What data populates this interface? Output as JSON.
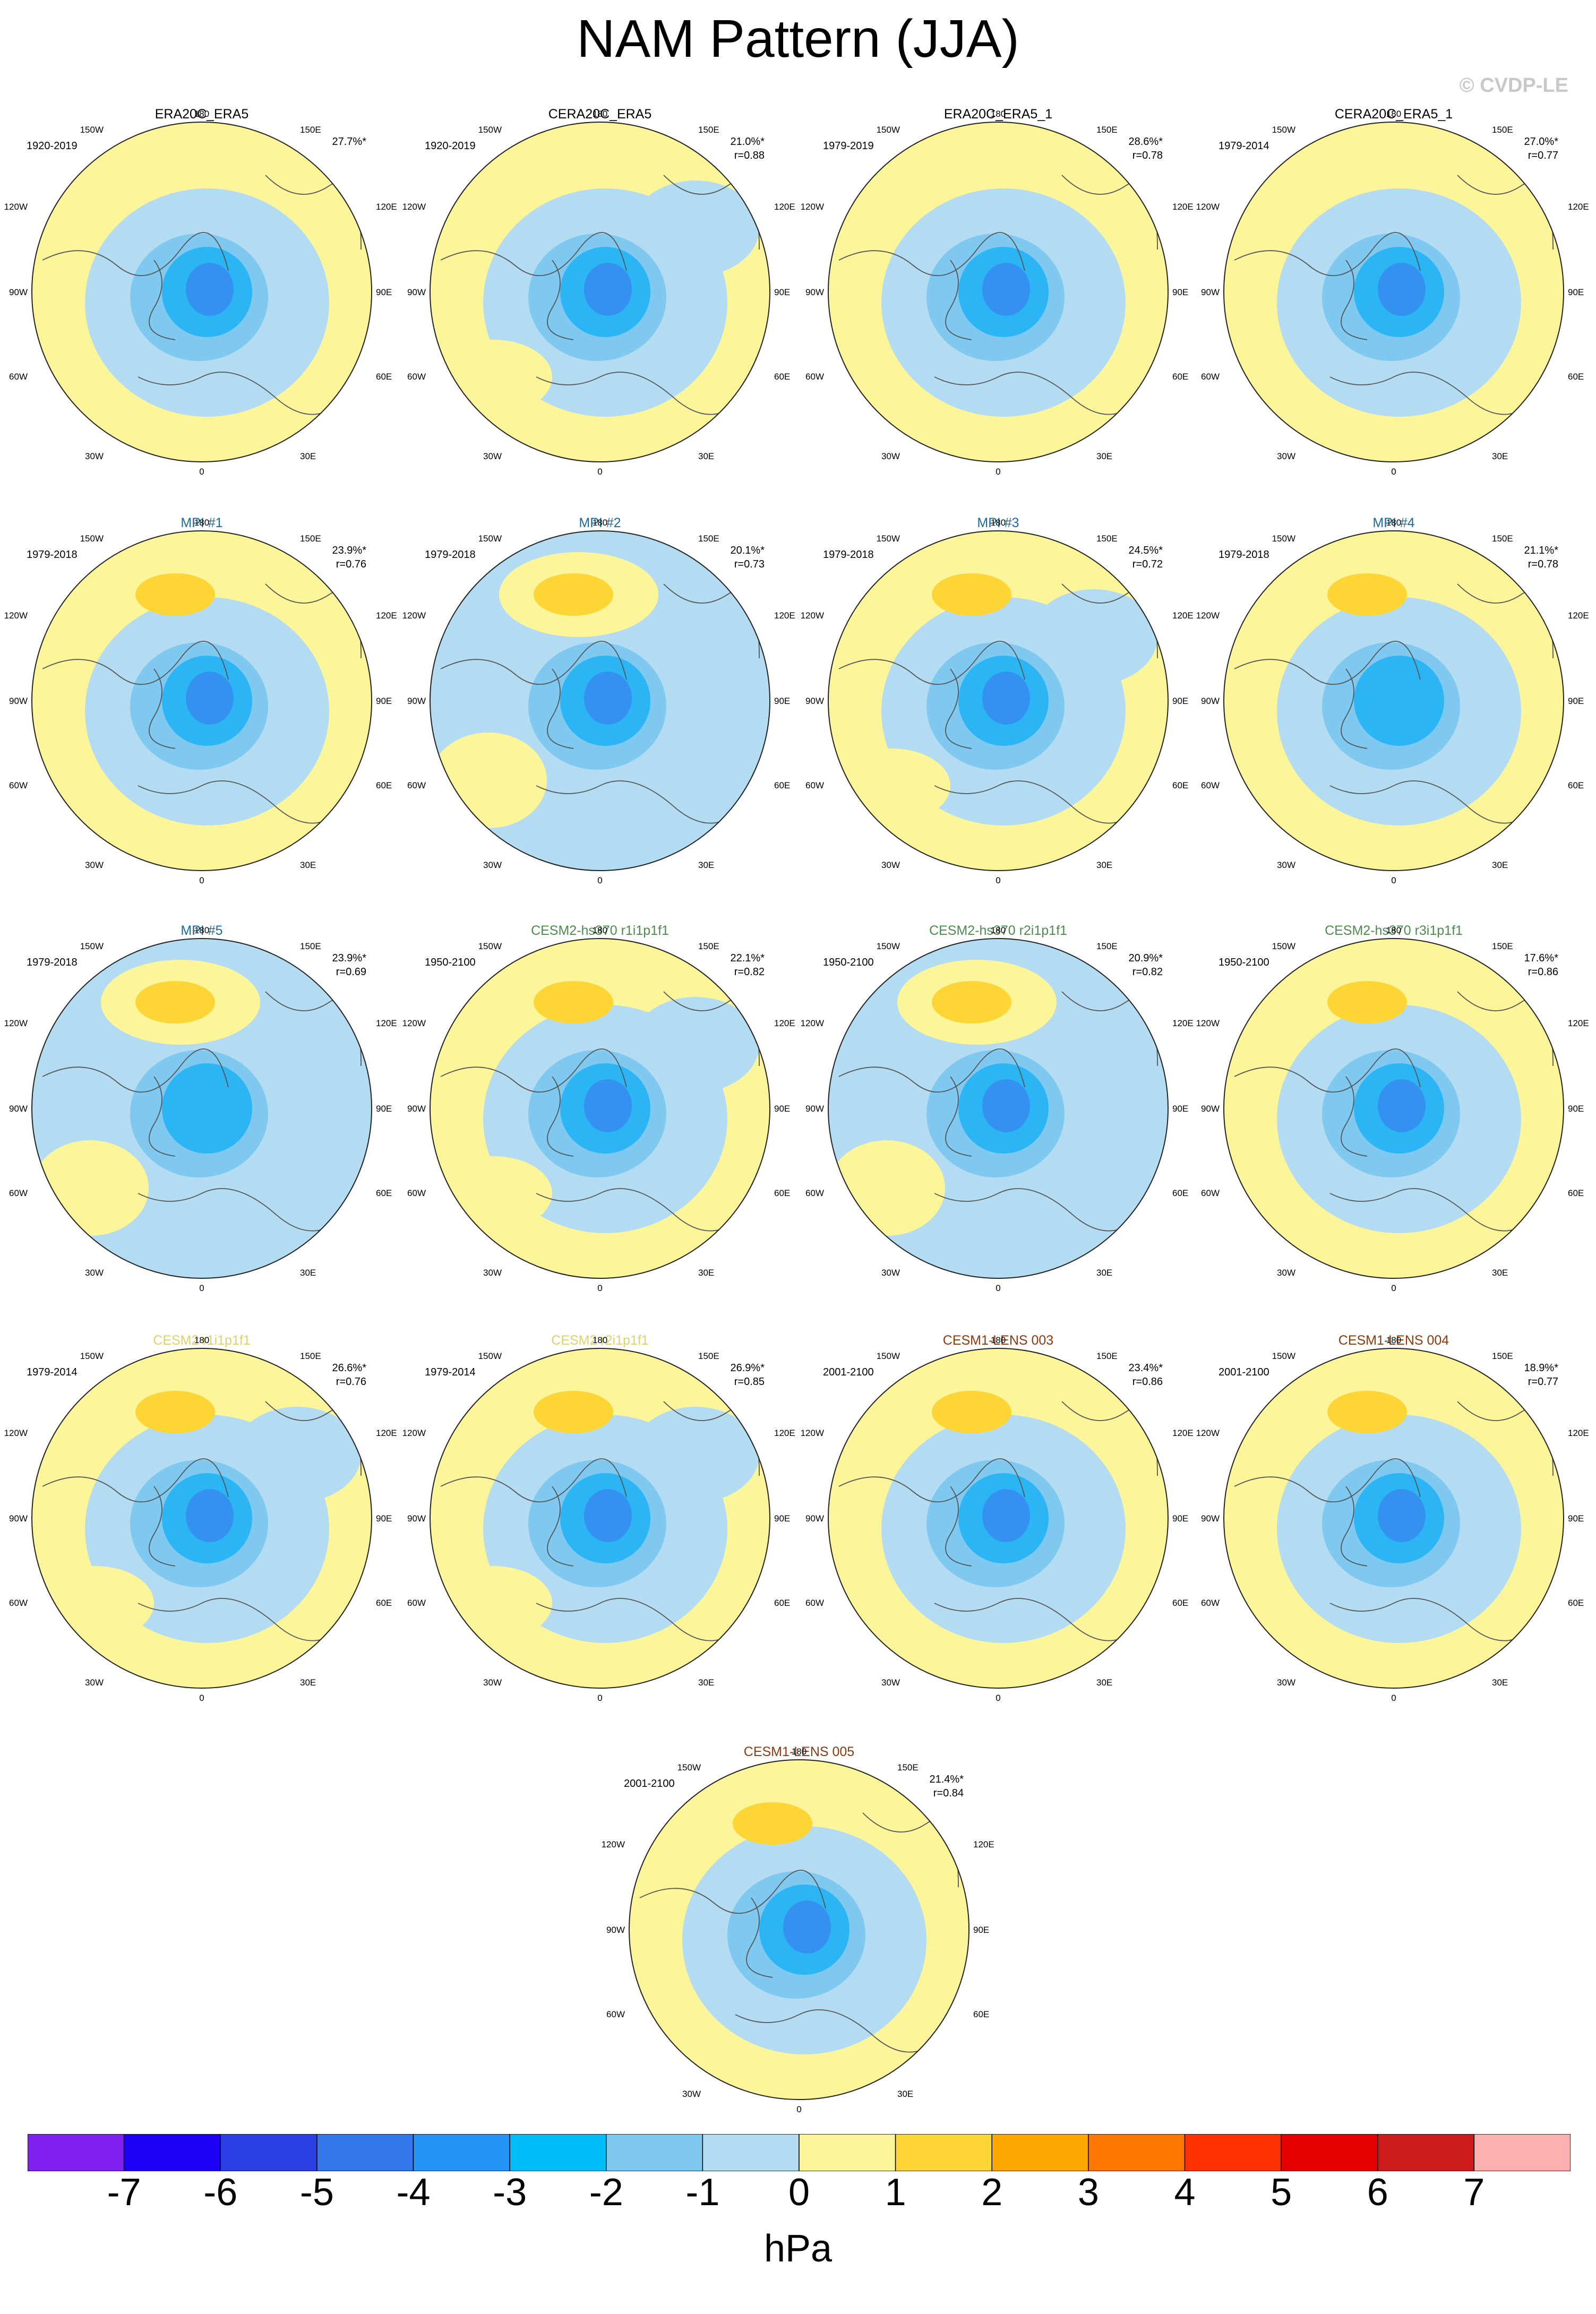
{
  "title": "NAM Pattern (JJA)",
  "watermark": "© CVDP-LE",
  "map_labels": {
    "top": "180",
    "bottom": "0",
    "left_upper": "120W",
    "left_mid": "90W",
    "left_lower": "60W",
    "right_upper": "120E",
    "right_mid": "90E",
    "right_lower": "60E",
    "top_left": "150W",
    "top_right": "150E",
    "bottom_left": "30W",
    "bottom_right": "30E"
  },
  "colors": {
    "ocean_neutral": "#b3dcf2",
    "positive_weak": "#fdf59a",
    "positive_mid": "#fdd535",
    "negative_1": "#7fc8f0",
    "negative_2": "#2bb5f5",
    "negative_3": "#3591f0",
    "observation_title": "#000000",
    "mpi_title": "#1e6a9a",
    "cesm2_hs370_title": "#4e8a4e",
    "cesm2_title": "#e0d070",
    "cesm1_lens_title": "#8b3a0f"
  },
  "panels": [
    {
      "title": "ERA20C_ERA5",
      "title_color": "#000000",
      "period": "1920-2019",
      "pct": "27.7%*",
      "r": "",
      "ring": "yellow",
      "center": "mid"
    },
    {
      "title": "CERA20C_ERA5",
      "title_color": "#000000",
      "period": "1920-2019",
      "pct": "21.0%*",
      "r": "r=0.88",
      "ring": "mixed",
      "center": "deep"
    },
    {
      "title": "ERA20C_ERA5_1",
      "title_color": "#000000",
      "period": "1979-2019",
      "pct": "28.6%*",
      "r": "r=0.78",
      "ring": "yellow",
      "center": "deep"
    },
    {
      "title": "CERA20C_ERA5_1",
      "title_color": "#000000",
      "period": "1979-2014",
      "pct": "27.0%*",
      "r": "r=0.77",
      "ring": "yellow",
      "center": "deep"
    },
    {
      "title": "MPI #1",
      "title_color": "#1e6a9a",
      "period": "1979-2018",
      "pct": "23.9%*",
      "r": "r=0.76",
      "ring": "yellow",
      "center": "mid"
    },
    {
      "title": "MPI #2",
      "title_color": "#1e6a9a",
      "period": "1979-2018",
      "pct": "20.1%*",
      "r": "r=0.73",
      "ring": "blue",
      "center": "mid"
    },
    {
      "title": "MPI #3",
      "title_color": "#1e6a9a",
      "period": "1979-2018",
      "pct": "24.5%*",
      "r": "r=0.72",
      "ring": "mixed",
      "center": "mid"
    },
    {
      "title": "MPI #4",
      "title_color": "#1e6a9a",
      "period": "1979-2018",
      "pct": "21.1%*",
      "r": "r=0.78",
      "ring": "yellow",
      "center": "weak"
    },
    {
      "title": "MPI #5",
      "title_color": "#1e6a9a",
      "period": "1979-2018",
      "pct": "23.9%*",
      "r": "r=0.69",
      "ring": "blue",
      "center": "weak"
    },
    {
      "title": "CESM2-hs370 r1i1p1f1",
      "title_color": "#4e8a4e",
      "period": "1950-2100",
      "pct": "22.1%*",
      "r": "r=0.82",
      "ring": "mixed",
      "center": "mid"
    },
    {
      "title": "CESM2-hs370 r2i1p1f1",
      "title_color": "#4e8a4e",
      "period": "1950-2100",
      "pct": "20.9%*",
      "r": "r=0.82",
      "ring": "blue",
      "center": "mid"
    },
    {
      "title": "CESM2-hs370 r3i1p1f1",
      "title_color": "#4e8a4e",
      "period": "1950-2100",
      "pct": "17.6%*",
      "r": "r=0.86",
      "ring": "yellow",
      "center": "deep"
    },
    {
      "title": "CESM2 r1i1p1f1",
      "title_color": "#e0d070",
      "period": "1979-2014",
      "pct": "26.6%*",
      "r": "r=0.76",
      "ring": "mixed",
      "center": "deep"
    },
    {
      "title": "CESM2 r2i1p1f1",
      "title_color": "#e0d070",
      "period": "1979-2014",
      "pct": "26.9%*",
      "r": "r=0.85",
      "ring": "mixed",
      "center": "deep"
    },
    {
      "title": "CESM1-LENS 003",
      "title_color": "#8b3a0f",
      "period": "2001-2100",
      "pct": "23.4%*",
      "r": "r=0.86",
      "ring": "yellow",
      "center": "mid"
    },
    {
      "title": "CESM1-LENS 004",
      "title_color": "#8b3a0f",
      "period": "2001-2100",
      "pct": "18.9%*",
      "r": "r=0.77",
      "ring": "yellow",
      "center": "mid"
    },
    {
      "title": "CESM1-LENS 005",
      "title_color": "#8b3a0f",
      "period": "2001-2100",
      "pct": "21.4%*",
      "r": "r=0.84",
      "ring": "yellow",
      "center": "mid"
    }
  ],
  "colorbar": {
    "units": "hPa",
    "ticks": [
      "-7",
      "-6",
      "-5",
      "-4",
      "-3",
      "-2",
      "-1",
      "0",
      "1",
      "2",
      "3",
      "4",
      "5",
      "6",
      "7"
    ],
    "colors": [
      "#8020f0",
      "#1e00f8",
      "#2a40e6",
      "#3278ec",
      "#2394f6",
      "#00bcf8",
      "#7fc8f0",
      "#b3dcf2",
      "#fdf59a",
      "#fdd535",
      "#fda800",
      "#fd7800",
      "#fd3200",
      "#e60000",
      "#cc1b1b",
      "#fdb0b0"
    ]
  }
}
